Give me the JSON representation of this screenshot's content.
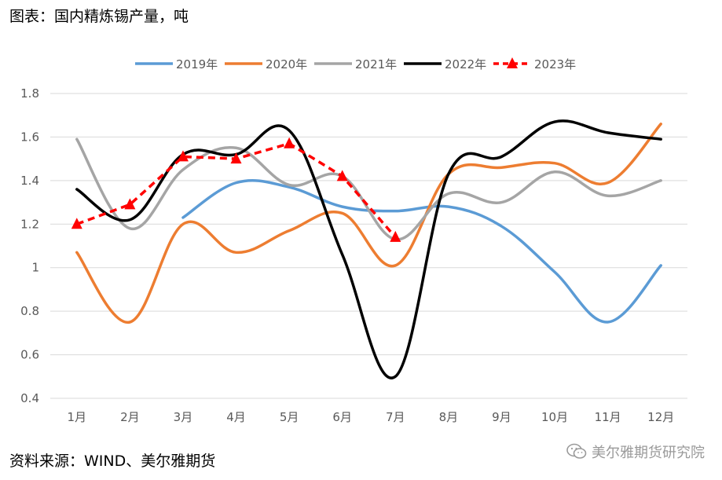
{
  "header": {
    "title": "图表：国内精炼锡产量，吨"
  },
  "footer": {
    "source": "资料来源：WIND、美尔雅期货",
    "watermark": "美尔雅期货研究院",
    "watermark_icon": "wechat-icon"
  },
  "chart_data": {
    "type": "line",
    "categories": [
      "1月",
      "2月",
      "3月",
      "4月",
      "5月",
      "6月",
      "7月",
      "8月",
      "9月",
      "10月",
      "11月",
      "12月"
    ],
    "ylim": [
      0.4,
      1.8
    ],
    "yticks": [
      "0.4",
      "0.6",
      "0.8",
      "1",
      "1.2",
      "1.4",
      "1.6",
      "1.8"
    ],
    "grid": true,
    "legend_position": "top",
    "series": [
      {
        "name": "2019年",
        "color": "#5b9bd5",
        "dashed": false,
        "marker": "none",
        "smooth": true,
        "values": [
          null,
          null,
          1.23,
          1.39,
          1.37,
          1.28,
          1.26,
          1.28,
          1.19,
          0.98,
          0.75,
          1.01
        ]
      },
      {
        "name": "2020年",
        "color": "#ed7d31",
        "dashed": false,
        "marker": "none",
        "smooth": true,
        "values": [
          1.07,
          0.75,
          1.2,
          1.07,
          1.17,
          1.25,
          1.01,
          1.43,
          1.46,
          1.48,
          1.39,
          1.66
        ]
      },
      {
        "name": "2021年",
        "color": "#a5a5a5",
        "dashed": false,
        "marker": "none",
        "smooth": true,
        "values": [
          1.59,
          1.18,
          1.45,
          1.55,
          1.38,
          1.42,
          1.13,
          1.34,
          1.3,
          1.44,
          1.33,
          1.4
        ]
      },
      {
        "name": "2022年",
        "color": "#000000",
        "dashed": false,
        "marker": "none",
        "smooth": true,
        "values": [
          1.36,
          1.22,
          1.52,
          1.52,
          1.63,
          1.06,
          0.5,
          1.43,
          1.51,
          1.67,
          1.62,
          1.59
        ]
      },
      {
        "name": "2023年",
        "color": "#ff0000",
        "dashed": true,
        "marker": "triangle",
        "smooth": false,
        "values": [
          1.2,
          1.29,
          1.51,
          1.5,
          1.57,
          1.42,
          1.14,
          null,
          null,
          null,
          null,
          null
        ]
      }
    ]
  }
}
